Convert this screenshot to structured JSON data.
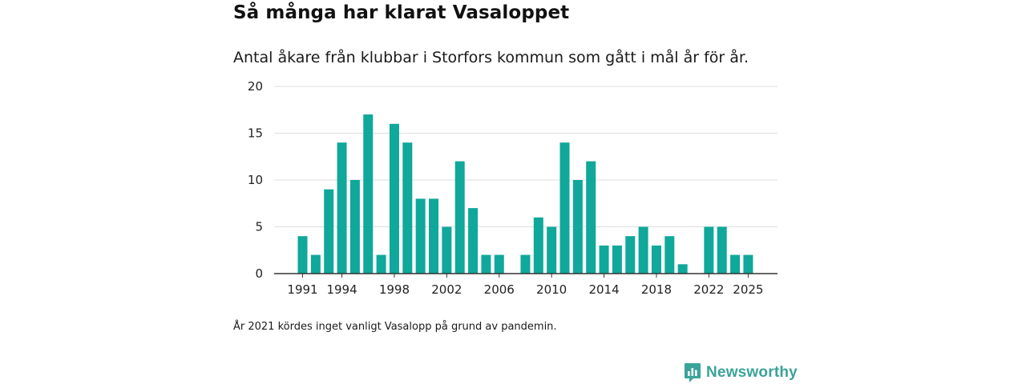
{
  "header": {
    "title": "Så många har klarat Vasaloppet",
    "subtitle": "Antal åkare från klubbar i Storfors kommun som gått i mål år för år."
  },
  "footnote": "År 2021 kördes inget vanligt Vasalopp på grund av pandemin.",
  "brand": {
    "name": "Newsworthy",
    "icon": "newsworthy-logo-icon",
    "color": "#3aa39a"
  },
  "colors": {
    "bar": "#0fa89a",
    "grid": "#dddddd",
    "axis": "#333333"
  },
  "chart_data": {
    "type": "bar",
    "title": "Så många har klarat Vasaloppet",
    "subtitle": "Antal åkare från klubbar i Storfors kommun som gått i mål år för år.",
    "xlabel": "",
    "ylabel": "",
    "ylim": [
      0,
      20
    ],
    "yticks": [
      0,
      5,
      10,
      15,
      20
    ],
    "xtick_labels": [
      "1991",
      "1994",
      "1998",
      "2002",
      "2006",
      "2010",
      "2014",
      "2018",
      "2022",
      "2025"
    ],
    "categories": [
      "1991",
      "1992",
      "1993",
      "1994",
      "1995",
      "1996",
      "1997",
      "1998",
      "1999",
      "2000",
      "2001",
      "2002",
      "2003",
      "2004",
      "2005",
      "2006",
      "2007",
      "2008",
      "2009",
      "2010",
      "2011",
      "2012",
      "2013",
      "2014",
      "2015",
      "2016",
      "2017",
      "2018",
      "2019",
      "2020",
      "2021",
      "2022",
      "2023",
      "2024",
      "2025"
    ],
    "values": [
      4,
      2,
      9,
      14,
      10,
      17,
      2,
      16,
      14,
      8,
      8,
      5,
      12,
      7,
      2,
      2,
      0,
      2,
      6,
      5,
      14,
      10,
      12,
      3,
      3,
      4,
      5,
      3,
      4,
      1,
      0,
      5,
      5,
      2,
      2
    ],
    "grid": true,
    "legend": "none"
  }
}
